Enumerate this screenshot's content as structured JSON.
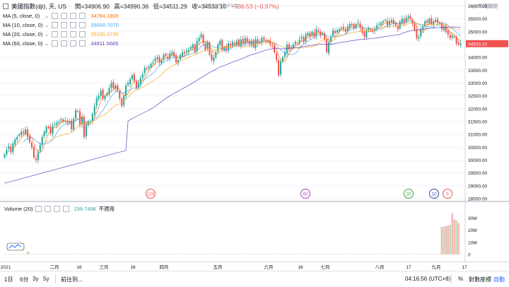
{
  "header": {
    "symbol": "美國指數(dji), 天, US",
    "open_label": "開",
    "open": "=34906.90",
    "high_label": "高",
    "high": "=34990.36",
    "low_label": "低",
    "low": "=34511.29",
    "close_label": "收",
    "close": "=34533.10",
    "change": "−336.53 (−0.97%)",
    "watermark": "已出佔可用(FSC)",
    "market_status": "市場關閉"
  },
  "indicators": [
    {
      "name": "MA (5, close, 0)",
      "value": "34784.1800",
      "color": "#ff6d00"
    },
    {
      "name": "MA (10, close, 0)",
      "value": "35050.7070",
      "color": "#42a5f5"
    },
    {
      "name": "MA (20, close, 0)",
      "value": "35150.0735",
      "color": "#f5a623"
    },
    {
      "name": "MA (60, close, 0)",
      "value": "34911.5665",
      "color": "#673ab7"
    }
  ],
  "volume": {
    "name": "Volume (20)",
    "value": "239.746K",
    "status": "不適用",
    "value_color": "#26a69a"
  },
  "price_axis": [
    "36000.00",
    "35500.00",
    "35000.00",
    "34500.00",
    "34000.00",
    "33500.00",
    "33000.00",
    "32500.00",
    "32000.00",
    "31500.00",
    "31000.00",
    "30500.00",
    "30000.00",
    "29500.00",
    "29000.00",
    "28500.00"
  ],
  "last_price": "34533.10",
  "volume_axis": [
    "30M",
    "20M",
    "10M",
    "0"
  ],
  "time_axis": [
    "2021",
    "二月",
    "16",
    "三月",
    "16",
    "四月",
    "五月",
    "六月",
    "16",
    "七月",
    "八月",
    "17",
    "九月",
    "17"
  ],
  "events": [
    {
      "label": "120",
      "color": "#ef5350"
    },
    {
      "label": "60",
      "color": "#ab47bc"
    },
    {
      "label": "20",
      "color": "#43a047"
    },
    {
      "label": "10",
      "color": "#3949ab"
    },
    {
      "label": "5",
      "color": "#ef5350"
    }
  ],
  "bottom_bar": {
    "ranges": [
      "1日",
      "6分",
      "3y",
      "5y"
    ],
    "goto": "前往到...",
    "clock": "04:16:56 (UTC+8)",
    "percent": "%",
    "log": "對數座標",
    "auto": "自動"
  },
  "colors": {
    "up": "#26a69a",
    "down": "#ef5350",
    "vol_up": "#b7e4b0",
    "vol_down": "#f7b8bc"
  },
  "chart_data": {
    "type": "candlestick",
    "title": "美國指數(dji), 天, US",
    "ylim": [
      28500,
      36000
    ],
    "x_labels": [
      "2021",
      "二月",
      "16",
      "三月",
      "16",
      "四月",
      "五月",
      "六月",
      "16",
      "七月",
      "八月",
      "17",
      "九月",
      "17"
    ],
    "ohlc_last": {
      "open": 34906.9,
      "high": 34990.36,
      "low": 34511.29,
      "close": 34533.1
    },
    "closes": [
      30223,
      30400,
      30550,
      30300,
      30650,
      30800,
      30900,
      31000,
      31100,
      31050,
      31200,
      30900,
      30700,
      30500,
      30100,
      30000,
      30300,
      30600,
      30900,
      31100,
      31300,
      31250,
      31050,
      31350,
      31400,
      31450,
      31500,
      31600,
      31500,
      31550,
      31450,
      31500,
      31200,
      31600,
      31950,
      31900,
      31350,
      31700,
      30900,
      31400,
      31500,
      31500,
      31800,
      32100,
      32400,
      32500,
      32700,
      32400,
      32500,
      32600,
      32800,
      33000,
      32800,
      32900,
      32700,
      32400,
      32100,
      32500,
      32900,
      33000,
      33150,
      33300,
      33100,
      32800,
      33000,
      33200,
      33350,
      33600,
      33550,
      33650,
      33750,
      33800,
      33950,
      34000,
      33800,
      33900,
      34100,
      34050,
      33950,
      34150,
      34200,
      34050,
      33800,
      33900,
      34100,
      34200,
      34150,
      34250,
      34300,
      34400,
      34500,
      34200,
      34650,
      34750,
      34900,
      34550,
      34300,
      34600,
      34100,
      33900,
      34000,
      34200,
      34500,
      34650,
      34300,
      34400,
      34250,
      34550,
      34450,
      34600,
      34500,
      34650,
      34450,
      34700,
      34550,
      34750,
      34600,
      34500,
      34650,
      34400,
      34700,
      34550,
      34600,
      34750,
      34700,
      34650,
      34600,
      34500,
      34450,
      34200,
      33900,
      33300,
      33850,
      34000,
      34200,
      34500,
      34300,
      34400,
      34500,
      34600,
      34550,
      34700,
      34800,
      34600,
      34900,
      34950,
      34800,
      35000,
      34800,
      35100,
      35000,
      34850,
      34950,
      34700,
      34200,
      34600,
      34800,
      35050,
      34950,
      35050,
      35100,
      35150,
      35100,
      35000,
      35200,
      35300,
      35250,
      35150,
      35300,
      35350,
      35150,
      34950,
      34800,
      35050,
      35150,
      35050,
      35000,
      35100,
      35250,
      35300,
      35350,
      35400,
      35450,
      35250,
      35400,
      35450,
      35300,
      35250,
      35100,
      35400,
      35500,
      35350,
      35550,
      35600,
      35500,
      35300,
      35050,
      34750,
      34800,
      35100,
      35200,
      35400,
      35350,
      35500,
      35300,
      35400,
      35450,
      35350,
      35300,
      35100,
      35200,
      35000,
      34900,
      34750,
      34850,
      34800,
      34550,
      34500,
      34533
    ],
    "ma_periods": [
      5,
      10,
      20,
      60
    ],
    "volume_recent": [
      0.3,
      0.3,
      0.3,
      23,
      23,
      23.5,
      24,
      24.5,
      34,
      29,
      28,
      26,
      0.3
    ]
  }
}
